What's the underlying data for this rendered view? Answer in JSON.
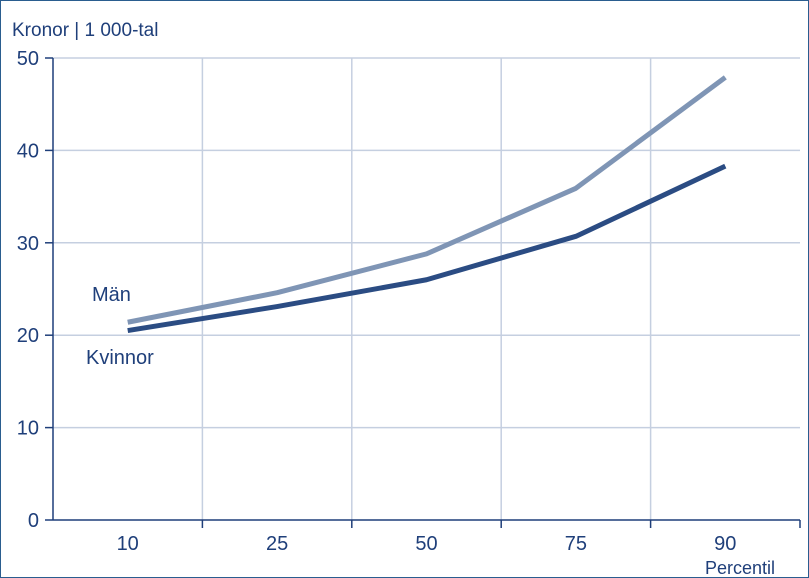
{
  "chart_data": {
    "type": "line",
    "ylabel": "Kronor | 1 000-tal",
    "xlabel": "Percentil",
    "x": [
      "10",
      "25",
      "50",
      "75",
      "90"
    ],
    "ylim": [
      0,
      50
    ],
    "yticks": [
      "0",
      "10",
      "20",
      "30",
      "40",
      "50"
    ],
    "grid": true,
    "series": [
      {
        "name": "Män",
        "values": [
          21.4,
          24.6,
          28.8,
          35.9,
          47.9
        ],
        "color": "#7f95b5"
      },
      {
        "name": "Kvinnor",
        "values": [
          20.5,
          23.1,
          26.0,
          30.7,
          38.3
        ],
        "color": "#2b4c83"
      }
    ]
  },
  "colors": {
    "axis": "#1f3f7a",
    "grid": "#c5cfe0",
    "frame": "#2a5d8f"
  }
}
